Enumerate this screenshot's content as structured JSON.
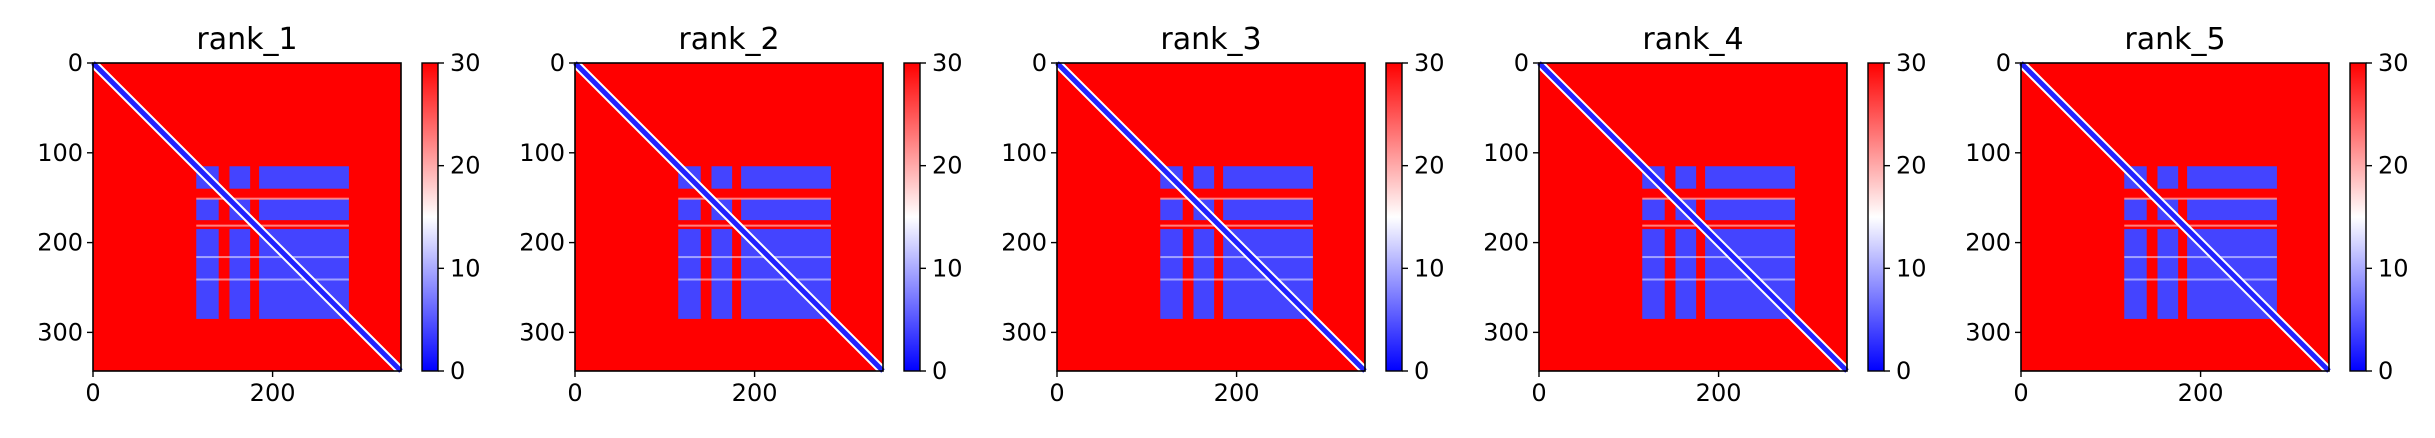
{
  "chart_data": [
    {
      "type": "heatmap",
      "title": "rank_1",
      "x_ticks": [
        0,
        200
      ],
      "y_ticks": [
        0,
        100,
        200,
        300
      ],
      "xlim": [
        0,
        343
      ],
      "ylim": [
        343,
        0
      ],
      "colorbar": {
        "min": 0,
        "max": 30,
        "ticks": [
          0,
          10,
          20,
          30
        ],
        "colormap": "bwr"
      },
      "description_values": {
        "diagonal_value": 2,
        "background_value": 30,
        "block_value": 4,
        "block_range": [
          115,
          285
        ]
      }
    },
    {
      "type": "heatmap",
      "title": "rank_2",
      "x_ticks": [
        0,
        200
      ],
      "y_ticks": [
        0,
        100,
        200,
        300
      ],
      "xlim": [
        0,
        343
      ],
      "ylim": [
        343,
        0
      ],
      "colorbar": {
        "min": 0,
        "max": 30,
        "ticks": [
          0,
          10,
          20,
          30
        ],
        "colormap": "bwr"
      },
      "description_values": {
        "diagonal_value": 2,
        "background_value": 30,
        "block_value": 4,
        "block_range": [
          115,
          285
        ]
      }
    },
    {
      "type": "heatmap",
      "title": "rank_3",
      "x_ticks": [
        0,
        200
      ],
      "y_ticks": [
        0,
        100,
        200,
        300
      ],
      "xlim": [
        0,
        343
      ],
      "ylim": [
        343,
        0
      ],
      "colorbar": {
        "min": 0,
        "max": 30,
        "ticks": [
          0,
          10,
          20,
          30
        ],
        "colormap": "bwr"
      },
      "description_values": {
        "diagonal_value": 2,
        "background_value": 30,
        "block_value": 4,
        "block_range": [
          115,
          285
        ]
      }
    },
    {
      "type": "heatmap",
      "title": "rank_4",
      "x_ticks": [
        0,
        200
      ],
      "y_ticks": [
        0,
        100,
        200,
        300
      ],
      "xlim": [
        0,
        343
      ],
      "ylim": [
        343,
        0
      ],
      "colorbar": {
        "min": 0,
        "max": 30,
        "ticks": [
          0,
          10,
          20,
          30
        ],
        "colormap": "bwr"
      },
      "description_values": {
        "diagonal_value": 2,
        "background_value": 30,
        "block_value": 4,
        "block_range": [
          115,
          285
        ]
      }
    },
    {
      "type": "heatmap",
      "title": "rank_5",
      "x_ticks": [
        0,
        200
      ],
      "y_ticks": [
        0,
        100,
        200,
        300
      ],
      "xlim": [
        0,
        343
      ],
      "ylim": [
        343,
        0
      ],
      "colorbar": {
        "min": 0,
        "max": 30,
        "ticks": [
          0,
          10,
          20,
          30
        ],
        "colormap": "bwr"
      },
      "description_values": {
        "diagonal_value": 2,
        "background_value": 30,
        "block_value": 4,
        "block_range": [
          115,
          285
        ]
      }
    }
  ],
  "colors": {
    "low": "#0000ff",
    "mid": "#ffffff",
    "high": "#ff0000"
  }
}
